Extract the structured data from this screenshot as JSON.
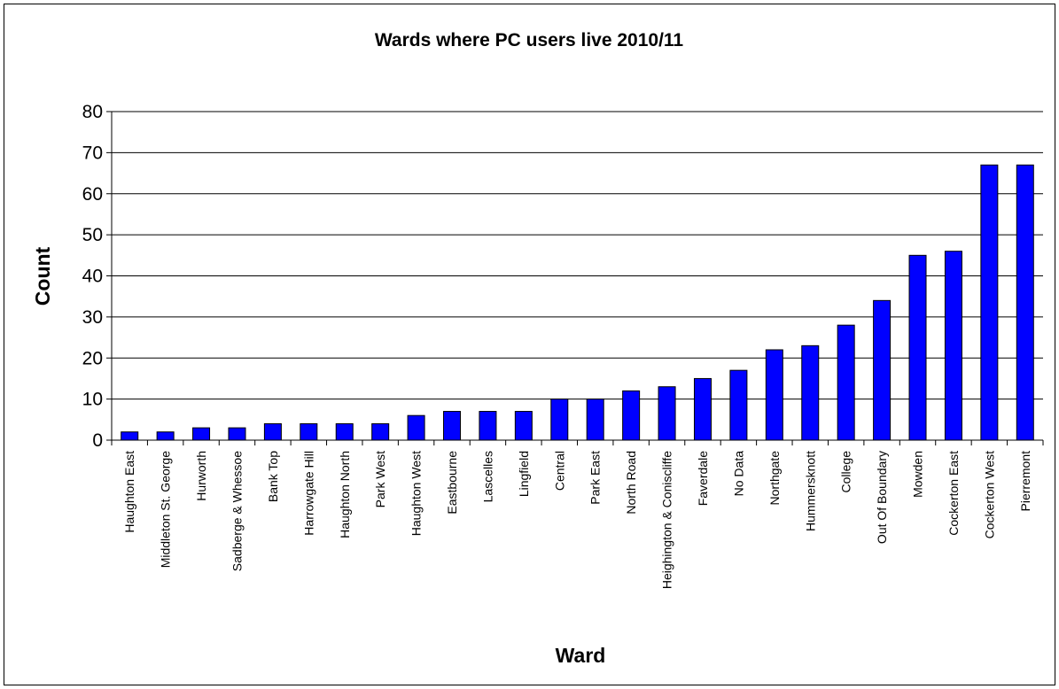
{
  "chart_data": {
    "type": "bar",
    "title": "Wards where PC users live 2010/11",
    "xlabel": "Ward",
    "ylabel": "Count",
    "ylim": [
      0,
      80
    ],
    "yticks": [
      0,
      10,
      20,
      30,
      40,
      50,
      60,
      70,
      80
    ],
    "grid": true,
    "legend": "none",
    "colors": {
      "bar": "#0000ff",
      "bar_stroke": "#000000",
      "grid": "#000000"
    },
    "categories": [
      "Haughton East",
      "Middleton St. George",
      "Hurworth",
      "Sadberge & Whessoe",
      "Bank Top",
      "Harrowgate Hill",
      "Haughton North",
      "Park West",
      "Haughton West",
      "Eastbourne",
      "Lascelles",
      "Lingfield",
      "Central",
      "Park East",
      "North Road",
      "Heighington & Coniscliffe",
      "Faverdale",
      "No Data",
      "Northgate",
      "Hummersknott",
      "College",
      "Out Of Boundary",
      "Mowden",
      "Cockerton East",
      "Cockerton West",
      "Pierremont"
    ],
    "values": [
      2,
      2,
      3,
      3,
      4,
      4,
      4,
      4,
      6,
      7,
      7,
      7,
      10,
      10,
      12,
      13,
      15,
      17,
      22,
      23,
      28,
      34,
      45,
      46,
      67,
      67
    ]
  }
}
